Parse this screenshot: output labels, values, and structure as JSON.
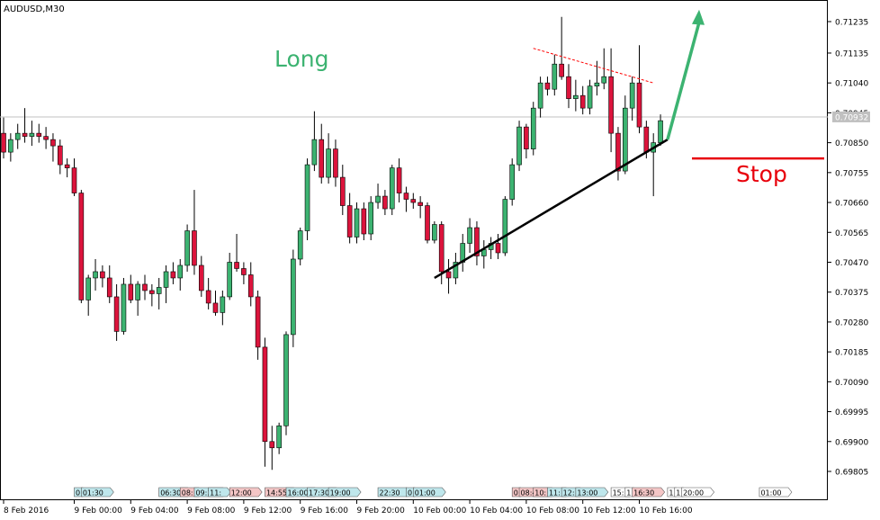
{
  "chart_data": {
    "type": "candlestick",
    "title": "AUDUSD,M30",
    "symbol": "AUDUSD",
    "timeframe": "M30",
    "current_price_label": "0.70932",
    "current_price": 0.70932,
    "ylim": [
      0.6975,
      0.7135
    ],
    "y_ticks": [
      {
        "value": 0.71235,
        "label": "0.71235"
      },
      {
        "value": 0.71135,
        "label": "0.71135"
      },
      {
        "value": 0.7104,
        "label": "0.71040"
      },
      {
        "value": 0.70945,
        "label": "0.70945"
      },
      {
        "value": 0.7085,
        "label": "0.70850"
      },
      {
        "value": 0.70755,
        "label": "0.70755"
      },
      {
        "value": 0.7066,
        "label": "0.70660"
      },
      {
        "value": 0.70565,
        "label": "0.70565"
      },
      {
        "value": 0.7047,
        "label": "0.70470"
      },
      {
        "value": 0.70375,
        "label": "0.70375"
      },
      {
        "value": 0.7028,
        "label": "0.70280"
      },
      {
        "value": 0.70185,
        "label": "0.70185"
      },
      {
        "value": 0.7009,
        "label": "0.70090"
      },
      {
        "value": 0.69995,
        "label": "0.69995"
      },
      {
        "value": 0.699,
        "label": "0.69900"
      },
      {
        "value": 0.69805,
        "label": "0.69805"
      }
    ],
    "x_ticks": [
      {
        "index": 0,
        "label": "8 Feb 2016"
      },
      {
        "index": 10,
        "label": "9 Feb 00:00"
      },
      {
        "index": 18,
        "label": "9 Feb 04:00"
      },
      {
        "index": 26,
        "label": "9 Feb 08:00"
      },
      {
        "index": 34,
        "label": "9 Feb 12:00"
      },
      {
        "index": 42,
        "label": "9 Feb 16:00"
      },
      {
        "index": 50,
        "label": "9 Feb 20:00"
      },
      {
        "index": 58,
        "label": "10 Feb 00:00"
      },
      {
        "index": 66,
        "label": "10 Feb 04:00"
      },
      {
        "index": 74,
        "label": "10 Feb 08:00"
      },
      {
        "index": 82,
        "label": "10 Feb 12:00"
      },
      {
        "index": 90,
        "label": "10 Feb 16:00"
      }
    ],
    "candles": [
      {
        "o": 0.7088,
        "h": 0.7093,
        "l": 0.708,
        "c": 0.7082
      },
      {
        "o": 0.7082,
        "h": 0.7088,
        "l": 0.7079,
        "c": 0.7086
      },
      {
        "o": 0.7086,
        "h": 0.7091,
        "l": 0.7083,
        "c": 0.7088
      },
      {
        "o": 0.7088,
        "h": 0.7096,
        "l": 0.7085,
        "c": 0.7087
      },
      {
        "o": 0.7087,
        "h": 0.7092,
        "l": 0.7084,
        "c": 0.7088
      },
      {
        "o": 0.7088,
        "h": 0.7091,
        "l": 0.7085,
        "c": 0.7087
      },
      {
        "o": 0.7087,
        "h": 0.709,
        "l": 0.7083,
        "c": 0.7086
      },
      {
        "o": 0.7086,
        "h": 0.7088,
        "l": 0.7079,
        "c": 0.7084
      },
      {
        "o": 0.7084,
        "h": 0.7086,
        "l": 0.7075,
        "c": 0.7078
      },
      {
        "o": 0.7078,
        "h": 0.708,
        "l": 0.7074,
        "c": 0.7077
      },
      {
        "o": 0.7077,
        "h": 0.708,
        "l": 0.7068,
        "c": 0.7069
      },
      {
        "o": 0.7069,
        "h": 0.707,
        "l": 0.7034,
        "c": 0.7035
      },
      {
        "o": 0.7035,
        "h": 0.7043,
        "l": 0.703,
        "c": 0.7042
      },
      {
        "o": 0.7042,
        "h": 0.7048,
        "l": 0.7038,
        "c": 0.7044
      },
      {
        "o": 0.7044,
        "h": 0.7046,
        "l": 0.7039,
        "c": 0.7042
      },
      {
        "o": 0.7042,
        "h": 0.7046,
        "l": 0.7034,
        "c": 0.7036
      },
      {
        "o": 0.7036,
        "h": 0.704,
        "l": 0.7022,
        "c": 0.7025
      },
      {
        "o": 0.7025,
        "h": 0.7042,
        "l": 0.7024,
        "c": 0.704
      },
      {
        "o": 0.704,
        "h": 0.7043,
        "l": 0.7034,
        "c": 0.7035
      },
      {
        "o": 0.7035,
        "h": 0.7041,
        "l": 0.703,
        "c": 0.704
      },
      {
        "o": 0.704,
        "h": 0.7043,
        "l": 0.7035,
        "c": 0.7038
      },
      {
        "o": 0.7038,
        "h": 0.704,
        "l": 0.7033,
        "c": 0.7037
      },
      {
        "o": 0.7037,
        "h": 0.7042,
        "l": 0.7032,
        "c": 0.7039
      },
      {
        "o": 0.7039,
        "h": 0.7046,
        "l": 0.7034,
        "c": 0.7044
      },
      {
        "o": 0.7044,
        "h": 0.7047,
        "l": 0.704,
        "c": 0.7042
      },
      {
        "o": 0.7042,
        "h": 0.7048,
        "l": 0.7038,
        "c": 0.7046
      },
      {
        "o": 0.7046,
        "h": 0.7059,
        "l": 0.7044,
        "c": 0.7057
      },
      {
        "o": 0.7057,
        "h": 0.707,
        "l": 0.7043,
        "c": 0.7046
      },
      {
        "o": 0.7046,
        "h": 0.7049,
        "l": 0.7036,
        "c": 0.7038
      },
      {
        "o": 0.7038,
        "h": 0.7042,
        "l": 0.7032,
        "c": 0.7034
      },
      {
        "o": 0.7034,
        "h": 0.7038,
        "l": 0.703,
        "c": 0.7031
      },
      {
        "o": 0.7031,
        "h": 0.7038,
        "l": 0.7027,
        "c": 0.7036
      },
      {
        "o": 0.7036,
        "h": 0.705,
        "l": 0.7035,
        "c": 0.7047
      },
      {
        "o": 0.7047,
        "h": 0.7056,
        "l": 0.7044,
        "c": 0.7045
      },
      {
        "o": 0.7045,
        "h": 0.7047,
        "l": 0.704,
        "c": 0.7043
      },
      {
        "o": 0.7043,
        "h": 0.7047,
        "l": 0.7033,
        "c": 0.7036
      },
      {
        "o": 0.7036,
        "h": 0.7038,
        "l": 0.7016,
        "c": 0.702
      },
      {
        "o": 0.702,
        "h": 0.7023,
        "l": 0.6982,
        "c": 0.699
      },
      {
        "o": 0.699,
        "h": 0.6995,
        "l": 0.6981,
        "c": 0.6988
      },
      {
        "o": 0.6988,
        "h": 0.6996,
        "l": 0.6986,
        "c": 0.6995
      },
      {
        "o": 0.6995,
        "h": 0.7025,
        "l": 0.6992,
        "c": 0.7024
      },
      {
        "o": 0.7024,
        "h": 0.7051,
        "l": 0.702,
        "c": 0.7048
      },
      {
        "o": 0.7048,
        "h": 0.7058,
        "l": 0.7046,
        "c": 0.7057
      },
      {
        "o": 0.7057,
        "h": 0.708,
        "l": 0.7054,
        "c": 0.7078
      },
      {
        "o": 0.7078,
        "h": 0.7095,
        "l": 0.7076,
        "c": 0.7086
      },
      {
        "o": 0.7086,
        "h": 0.7091,
        "l": 0.7072,
        "c": 0.7074
      },
      {
        "o": 0.7074,
        "h": 0.7088,
        "l": 0.7072,
        "c": 0.7083
      },
      {
        "o": 0.7083,
        "h": 0.7086,
        "l": 0.7071,
        "c": 0.7074
      },
      {
        "o": 0.7074,
        "h": 0.7078,
        "l": 0.7062,
        "c": 0.7065
      },
      {
        "o": 0.7065,
        "h": 0.7069,
        "l": 0.7053,
        "c": 0.7055
      },
      {
        "o": 0.7055,
        "h": 0.7066,
        "l": 0.7053,
        "c": 0.7064
      },
      {
        "o": 0.7064,
        "h": 0.7066,
        "l": 0.7054,
        "c": 0.7056
      },
      {
        "o": 0.7056,
        "h": 0.7068,
        "l": 0.7054,
        "c": 0.7066
      },
      {
        "o": 0.7066,
        "h": 0.7072,
        "l": 0.7064,
        "c": 0.7068
      },
      {
        "o": 0.7068,
        "h": 0.707,
        "l": 0.7062,
        "c": 0.7064
      },
      {
        "o": 0.7064,
        "h": 0.7078,
        "l": 0.7062,
        "c": 0.7077
      },
      {
        "o": 0.7077,
        "h": 0.708,
        "l": 0.7066,
        "c": 0.7069
      },
      {
        "o": 0.7069,
        "h": 0.7071,
        "l": 0.7063,
        "c": 0.7067
      },
      {
        "o": 0.7067,
        "h": 0.7069,
        "l": 0.7064,
        "c": 0.7066
      },
      {
        "o": 0.7066,
        "h": 0.7068,
        "l": 0.7061,
        "c": 0.7065
      },
      {
        "o": 0.7065,
        "h": 0.7066,
        "l": 0.7053,
        "c": 0.7054
      },
      {
        "o": 0.7054,
        "h": 0.706,
        "l": 0.7053,
        "c": 0.7059
      },
      {
        "o": 0.7059,
        "h": 0.706,
        "l": 0.704,
        "c": 0.7044
      },
      {
        "o": 0.7044,
        "h": 0.7048,
        "l": 0.7037,
        "c": 0.7042
      },
      {
        "o": 0.7042,
        "h": 0.705,
        "l": 0.704,
        "c": 0.7047
      },
      {
        "o": 0.7047,
        "h": 0.7056,
        "l": 0.7044,
        "c": 0.7053
      },
      {
        "o": 0.7053,
        "h": 0.7061,
        "l": 0.705,
        "c": 0.7058
      },
      {
        "o": 0.7058,
        "h": 0.706,
        "l": 0.7046,
        "c": 0.7049
      },
      {
        "o": 0.7049,
        "h": 0.7054,
        "l": 0.7045,
        "c": 0.7051
      },
      {
        "o": 0.7051,
        "h": 0.7055,
        "l": 0.7048,
        "c": 0.7053
      },
      {
        "o": 0.7053,
        "h": 0.7056,
        "l": 0.7048,
        "c": 0.705
      },
      {
        "o": 0.705,
        "h": 0.7068,
        "l": 0.7049,
        "c": 0.7067
      },
      {
        "o": 0.7067,
        "h": 0.708,
        "l": 0.7065,
        "c": 0.7078
      },
      {
        "o": 0.7078,
        "h": 0.7092,
        "l": 0.7076,
        "c": 0.709
      },
      {
        "o": 0.709,
        "h": 0.7091,
        "l": 0.708,
        "c": 0.7083
      },
      {
        "o": 0.7083,
        "h": 0.7098,
        "l": 0.7081,
        "c": 0.7096
      },
      {
        "o": 0.7096,
        "h": 0.7106,
        "l": 0.7093,
        "c": 0.7104
      },
      {
        "o": 0.7104,
        "h": 0.7106,
        "l": 0.71,
        "c": 0.7102
      },
      {
        "o": 0.7102,
        "h": 0.7113,
        "l": 0.71,
        "c": 0.711
      },
      {
        "o": 0.711,
        "h": 0.7125,
        "l": 0.7105,
        "c": 0.7106
      },
      {
        "o": 0.7106,
        "h": 0.711,
        "l": 0.7096,
        "c": 0.7099
      },
      {
        "o": 0.7099,
        "h": 0.7105,
        "l": 0.7095,
        "c": 0.71
      },
      {
        "o": 0.71,
        "h": 0.7103,
        "l": 0.7094,
        "c": 0.7096
      },
      {
        "o": 0.7096,
        "h": 0.7105,
        "l": 0.7094,
        "c": 0.7103
      },
      {
        "o": 0.7103,
        "h": 0.7111,
        "l": 0.71,
        "c": 0.7104
      },
      {
        "o": 0.7104,
        "h": 0.7115,
        "l": 0.7102,
        "c": 0.7106
      },
      {
        "o": 0.7106,
        "h": 0.7115,
        "l": 0.7082,
        "c": 0.7088
      },
      {
        "o": 0.7088,
        "h": 0.709,
        "l": 0.7073,
        "c": 0.7076
      },
      {
        "o": 0.7076,
        "h": 0.71,
        "l": 0.7075,
        "c": 0.7096
      },
      {
        "o": 0.7096,
        "h": 0.7106,
        "l": 0.7092,
        "c": 0.7104
      },
      {
        "o": 0.7104,
        "h": 0.7116,
        "l": 0.7088,
        "c": 0.709
      },
      {
        "o": 0.709,
        "h": 0.7092,
        "l": 0.708,
        "c": 0.7082
      },
      {
        "o": 0.7082,
        "h": 0.7088,
        "l": 0.7068,
        "c": 0.7085
      },
      {
        "o": 0.7085,
        "h": 0.7094,
        "l": 0.7084,
        "c": 0.7092
      }
    ],
    "annotations": {
      "long_label": "Long",
      "stop_label": "Stop",
      "trendline": {
        "from": {
          "index": 61,
          "price": 0.7042
        },
        "to": {
          "index": 94,
          "price": 0.7086
        }
      },
      "resistance": {
        "from": {
          "index": 75,
          "price": 0.7115
        },
        "to": {
          "index": 92,
          "price": 0.7104
        }
      },
      "stop_price": 0.708,
      "arrow_target_price": 0.7125
    },
    "grid": false,
    "legend": "none"
  },
  "time_markers": [
    {
      "index": 10,
      "label": "0",
      "color": "#bfe7ec"
    },
    {
      "index": 11,
      "label": "01:30",
      "color": "#bfe7ec"
    },
    {
      "index": 22,
      "label": "06:30",
      "color": "#bfe7ec"
    },
    {
      "index": 25,
      "label": "08:",
      "color": "#f4c6c6"
    },
    {
      "index": 27,
      "label": "09:30",
      "color": "#bfe7ec"
    },
    {
      "index": 29,
      "label": "11:",
      "color": "#bfe7ec"
    },
    {
      "index": 32,
      "label": "12:00",
      "color": "#f4c6c6"
    },
    {
      "index": 37,
      "label": "14:55",
      "color": "#f4c6c6"
    },
    {
      "index": 40,
      "label": "16:00",
      "color": "#bfe7ec"
    },
    {
      "index": 43,
      "label": "17:30",
      "color": "#bfe7ec"
    },
    {
      "index": 46,
      "label": "19:00",
      "color": "#bfe7ec"
    },
    {
      "index": 53,
      "label": "22:30",
      "color": "#bfe7ec"
    },
    {
      "index": 57,
      "label": "0",
      "color": "#bfe7ec"
    },
    {
      "index": 58,
      "label": "01:00",
      "color": "#bfe7ec"
    },
    {
      "index": 72,
      "label": "0",
      "color": "#f4c6c6"
    },
    {
      "index": 73,
      "label": "08:45",
      "color": "#f4c6c6"
    },
    {
      "index": 75,
      "label": "10:",
      "color": "#f4c6c6"
    },
    {
      "index": 77,
      "label": "11:",
      "color": "#bfe7ec"
    },
    {
      "index": 79,
      "label": "12:",
      "color": "#bfe7ec"
    },
    {
      "index": 81,
      "label": "13:00",
      "color": "#bfe7ec"
    },
    {
      "index": 86,
      "label": "15:",
      "color": "#ffffff"
    },
    {
      "index": 88,
      "label": "1",
      "color": "#ffffff"
    },
    {
      "index": 89,
      "label": "16:30",
      "color": "#f4c6c6"
    },
    {
      "index": 94,
      "label": "1",
      "color": "#ffffff"
    },
    {
      "index": 95,
      "label": "1",
      "color": "#ffffff"
    },
    {
      "index": 96,
      "label": "20:00",
      "color": "#ffffff"
    },
    {
      "index": 107,
      "label": "01:00",
      "color": "#ffffff"
    }
  ],
  "colors": {
    "bull": "#3cb371",
    "bear": "#dc143c",
    "wick": "#000000",
    "arrow": "#3cb371",
    "long_text": "#3cb371",
    "stop": "#e8000b",
    "resistance": "#ff0000",
    "trendline": "#000000",
    "price_line": "#c0c0c0",
    "price_label_bg": "#c0c0c0"
  }
}
